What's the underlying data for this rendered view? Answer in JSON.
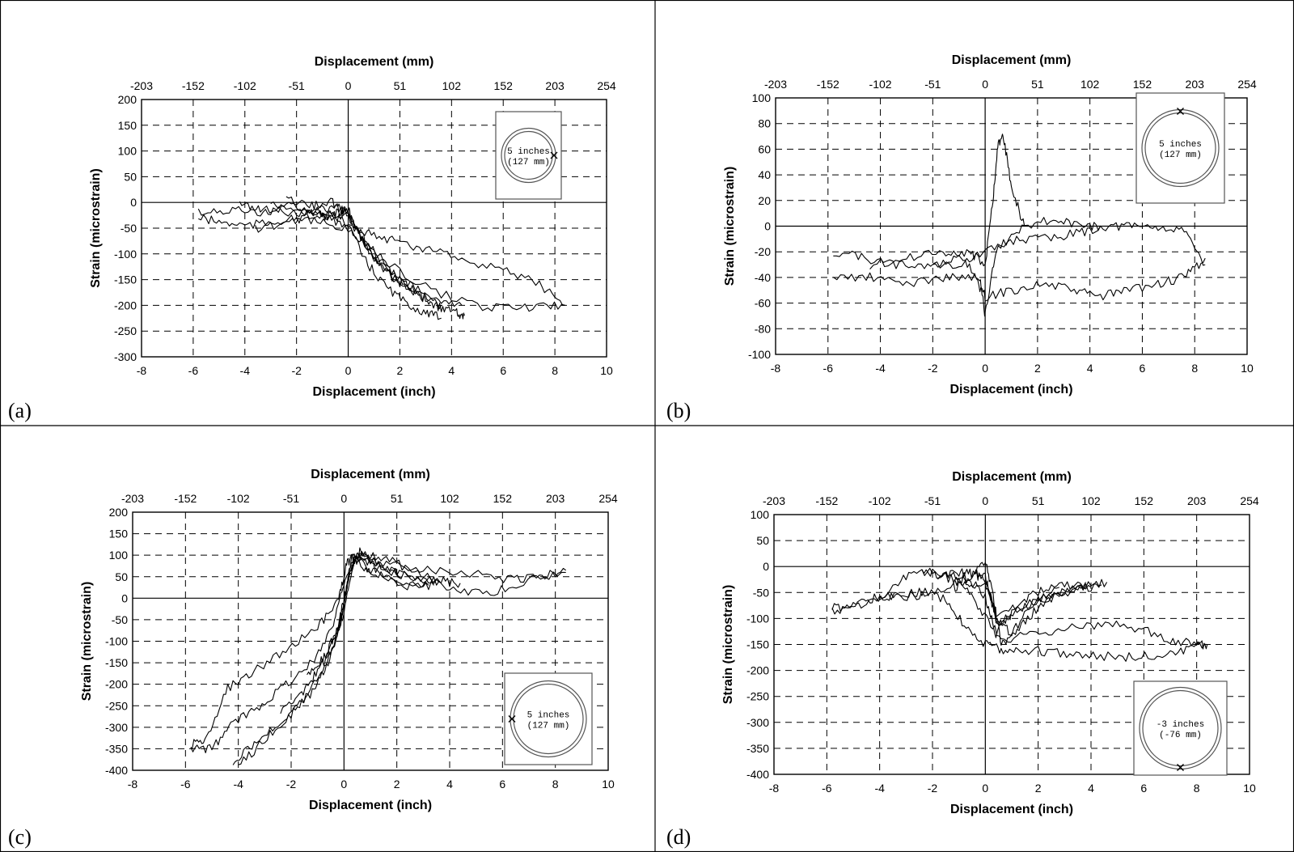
{
  "figure": {
    "panels": [
      {
        "label": "(a)",
        "title": "",
        "xlabel_top": "Displacement (mm)",
        "xlabel_bottom": "Displacement (inch)",
        "ylabel": "Strain (microstrain)",
        "inset": {
          "line1": "5 inches",
          "line2": "(127 mm)"
        }
      },
      {
        "label": "(b)",
        "title": "",
        "xlabel_top": "Displacement (mm)",
        "xlabel_bottom": "Displacement (inch)",
        "ylabel": "Strain (microstrain)",
        "inset": {
          "line1": "5 inches",
          "line2": "(127 mm)"
        }
      },
      {
        "label": "(c)",
        "title": "",
        "xlabel_top": "Displacement (mm)",
        "xlabel_bottom": "Displacement (inch)",
        "ylabel": "Strain (microstrain)",
        "inset": {
          "line1": "5 inches",
          "line2": "(127 mm)"
        }
      },
      {
        "label": "(d)",
        "title": "",
        "xlabel_top": "Displacement (mm)",
        "xlabel_bottom": "Displacement (inch)",
        "ylabel": "Strain (microstrain)",
        "inset": {
          "line1": "-3 inches",
          "line2": "(-76 mm)"
        }
      }
    ]
  },
  "chart_data": [
    {
      "type": "line",
      "panel": "(a)",
      "xlim": [
        -8,
        10
      ],
      "ylim": [
        -300,
        200
      ],
      "x_ticks": [
        -8,
        -6,
        -4,
        -2,
        0,
        2,
        4,
        6,
        8,
        10
      ],
      "y_ticks": [
        200,
        150,
        100,
        50,
        0,
        -50,
        -100,
        -150,
        -200,
        -250,
        -300
      ],
      "x2_ticks": [
        "-203",
        "-152",
        "-102",
        "-51",
        "0",
        "51",
        "102",
        "152",
        "203",
        "254"
      ],
      "grid": true,
      "line_color": "#000000",
      "series": [
        {
          "x": [
            -5.8,
            -4.6,
            -3.4,
            -2.4,
            -1.5,
            -0.8,
            -0.3,
            0.0,
            0.2,
            0.8,
            1.6,
            2.4,
            3.0,
            3.6,
            4.2,
            4.5
          ],
          "y": [
            -20,
            -15,
            -20,
            -15,
            -18,
            -25,
            -20,
            -10,
            -40,
            -100,
            -140,
            -170,
            -190,
            -205,
            -215,
            -220
          ]
        },
        {
          "x": [
            -5.8,
            -4.8,
            -3.8,
            -2.6,
            -1.6,
            -0.6,
            0.0,
            0.6,
            1.4,
            2.2,
            3.0,
            3.6
          ],
          "y": [
            -30,
            -40,
            -45,
            -35,
            -30,
            -25,
            -40,
            -110,
            -160,
            -195,
            -215,
            -225
          ]
        },
        {
          "x": [
            -4.2,
            -3.4,
            -2.2,
            -1.2,
            -0.4,
            0.0,
            0.6,
            1.4,
            2.4,
            3.4,
            4.4
          ],
          "y": [
            -5,
            -10,
            -20,
            -15,
            -10,
            -20,
            -80,
            -130,
            -160,
            -185,
            -200
          ]
        },
        {
          "x": [
            -3.0,
            -2.0,
            -1.0,
            0.0,
            0.8,
            1.8,
            2.8,
            3.6
          ],
          "y": [
            0,
            -10,
            -20,
            -30,
            -95,
            -150,
            -180,
            -200
          ]
        },
        {
          "x": [
            -2.4,
            -1.4,
            -0.6,
            0.0,
            0.6,
            1.2,
            2.0,
            2.8
          ],
          "y": [
            5,
            -5,
            0,
            -25,
            -70,
            -110,
            -150,
            -180
          ]
        },
        {
          "x": [
            -1.6,
            -0.8,
            0.0,
            0.8,
            1.8,
            3.0,
            4.4,
            6.0,
            7.4,
            8.4
          ],
          "y": [
            -20,
            -30,
            -45,
            -60,
            -75,
            -90,
            -110,
            -130,
            -160,
            -200
          ]
        },
        {
          "x": [
            -3.6,
            -2.4,
            -1.2,
            0.0,
            1.4,
            3.4,
            5.4,
            7.0,
            8.4
          ],
          "y": [
            -50,
            -40,
            -35,
            -55,
            -115,
            -175,
            -205,
            -205,
            -200
          ]
        }
      ]
    },
    {
      "type": "line",
      "panel": "(b)",
      "xlim": [
        -8,
        10
      ],
      "ylim": [
        -100,
        100
      ],
      "x_ticks": [
        -8,
        -6,
        -4,
        -2,
        0,
        2,
        4,
        6,
        8,
        10
      ],
      "y_ticks": [
        100,
        80,
        60,
        40,
        20,
        0,
        -20,
        -40,
        -60,
        -80,
        -100
      ],
      "x2_ticks": [
        "-203",
        "-152",
        "-102",
        "-51",
        "0",
        "51",
        "102",
        "152",
        "203",
        "254"
      ],
      "grid": true,
      "line_color": "#000000",
      "series": [
        {
          "x": [
            -5.8,
            -4.6,
            -3.4,
            -2.2,
            -1.0,
            0.0,
            1.2,
            2.4,
            3.6,
            4.6,
            5.6,
            6.6,
            7.6,
            8.4
          ],
          "y": [
            -20,
            -25,
            -30,
            -30,
            -30,
            -20,
            -10,
            -10,
            -5,
            0,
            0,
            0,
            -5,
            -30
          ]
        },
        {
          "x": [
            -5.8,
            -4.4,
            -3.0,
            -1.6,
            -0.4,
            0.0,
            1.0,
            2.2,
            3.4,
            4.4,
            5.4,
            6.6,
            7.6,
            8.4
          ],
          "y": [
            -40,
            -40,
            -45,
            -40,
            -40,
            -55,
            -50,
            -45,
            -50,
            -55,
            -50,
            -45,
            -40,
            -25
          ]
        },
        {
          "x": [
            -4.4,
            -3.0,
            -1.6,
            -0.6,
            0.0,
            0.3,
            0.5,
            0.7,
            1.0,
            1.5
          ],
          "y": [
            -30,
            -25,
            -20,
            -20,
            -30,
            20,
            65,
            70,
            30,
            0
          ]
        },
        {
          "x": [
            -2.0,
            -1.0,
            -0.2,
            0.0,
            0.4,
            1.4,
            2.6,
            3.6,
            4.4
          ],
          "y": [
            -30,
            -25,
            -40,
            -70,
            -20,
            0,
            5,
            0,
            0
          ]
        }
      ]
    },
    {
      "type": "line",
      "panel": "(c)",
      "xlim": [
        -8,
        10
      ],
      "ylim": [
        -400,
        200
      ],
      "x_ticks": [
        -8,
        -6,
        -4,
        -2,
        0,
        2,
        4,
        6,
        8,
        10
      ],
      "y_ticks": [
        200,
        150,
        100,
        50,
        0,
        -50,
        -100,
        -150,
        -200,
        -250,
        -300,
        -350,
        -400
      ],
      "x2_ticks": [
        "-203",
        "-152",
        "-102",
        "-51",
        "0",
        "51",
        "102",
        "152",
        "203",
        "254"
      ],
      "grid": true,
      "line_color": "#000000",
      "series": [
        {
          "x": [
            -5.8,
            -5.2,
            -4.4,
            -3.4,
            -2.2,
            -1.0,
            -0.2,
            0.1,
            0.4,
            1.2,
            2.4,
            3.6,
            4.4
          ],
          "y": [
            -340,
            -330,
            -210,
            -170,
            -120,
            -70,
            0,
            80,
            100,
            70,
            50,
            40,
            35
          ]
        },
        {
          "x": [
            -5.8,
            -5.0,
            -4.2,
            -3.2,
            -2.2,
            -1.2,
            -0.4,
            0.0,
            0.4,
            1.6,
            3.0,
            4.6,
            6.2,
            7.4,
            8.4
          ],
          "y": [
            -350,
            -350,
            -290,
            -250,
            -200,
            -150,
            -60,
            40,
            90,
            80,
            70,
            60,
            45,
            50,
            65
          ]
        },
        {
          "x": [
            -4.2,
            -3.4,
            -2.4,
            -1.6,
            -0.8,
            -0.2,
            0.2,
            0.6,
            1.6,
            2.6,
            3.6
          ],
          "y": [
            -380,
            -340,
            -290,
            -240,
            -170,
            -80,
            60,
            100,
            70,
            50,
            40
          ]
        },
        {
          "x": [
            -4.0,
            -3.0,
            -2.0,
            -1.2,
            -0.6,
            0.0,
            0.4,
            1.0,
            2.0,
            3.2
          ],
          "y": [
            -390,
            -330,
            -270,
            -220,
            -150,
            -30,
            90,
            60,
            40,
            30
          ]
        },
        {
          "x": [
            -2.4,
            -1.6,
            -1.0,
            -0.4,
            0.0,
            0.3,
            1.2,
            2.4,
            3.4
          ],
          "y": [
            -260,
            -220,
            -170,
            -110,
            -20,
            100,
            60,
            30,
            30
          ]
        },
        {
          "x": [
            -1.4,
            -0.8,
            -0.3,
            0.0,
            0.2,
            0.6,
            1.6,
            2.8,
            4.0,
            5.4,
            6.8,
            8.4
          ],
          "y": [
            -180,
            -140,
            -90,
            -20,
            60,
            110,
            90,
            60,
            20,
            10,
            40,
            60
          ]
        },
        {
          "x": [
            -0.6,
            -0.2,
            0.0,
            0.3,
            0.6,
            1.4,
            2.2
          ],
          "y": [
            -120,
            -60,
            0,
            80,
            100,
            80,
            50
          ]
        }
      ]
    },
    {
      "type": "line",
      "panel": "(d)",
      "xlim": [
        -8,
        10
      ],
      "ylim": [
        -400,
        100
      ],
      "x_ticks": [
        -8,
        -6,
        -4,
        -2,
        0,
        2,
        4,
        6,
        8,
        10
      ],
      "y_ticks": [
        100,
        50,
        0,
        -50,
        -100,
        -150,
        -200,
        -250,
        -300,
        -350,
        -400
      ],
      "x2_ticks": [
        "-203",
        "-152",
        "-102",
        "-51",
        "0",
        "51",
        "102",
        "152",
        "203",
        "254"
      ],
      "grid": true,
      "line_color": "#000000",
      "series": [
        {
          "x": [
            -5.8,
            -5.0,
            -4.2,
            -3.4,
            -2.4,
            -1.2,
            -0.6,
            0.0,
            0.4,
            1.2,
            2.4,
            3.6,
            4.6
          ],
          "y": [
            -80,
            -75,
            -60,
            -55,
            -50,
            -40,
            -30,
            -40,
            -90,
            -80,
            -60,
            -40,
            -30
          ]
        },
        {
          "x": [
            -5.8,
            -4.8,
            -3.8,
            -2.6,
            -1.6,
            -0.8,
            0.0,
            0.6,
            1.4,
            2.6,
            3.8,
            5.2,
            6.4,
            7.4,
            8.4
          ],
          "y": [
            -85,
            -75,
            -60,
            -55,
            -60,
            -110,
            -150,
            -160,
            -160,
            -165,
            -170,
            -175,
            -170,
            -165,
            -150
          ]
        },
        {
          "x": [
            -4.0,
            -3.0,
            -2.0,
            -1.0,
            -0.2,
            0.6,
            1.8,
            3.0,
            4.4,
            5.8,
            7.0,
            8.0,
            8.4
          ],
          "y": [
            -60,
            -20,
            -10,
            -30,
            -80,
            -140,
            -130,
            -120,
            -110,
            -120,
            -140,
            -150,
            -150
          ]
        },
        {
          "x": [
            -2.4,
            -1.6,
            -0.8,
            0.0,
            0.4,
            1.0,
            1.8,
            2.8,
            3.8
          ],
          "y": [
            -10,
            -15,
            -20,
            -60,
            -130,
            -90,
            -50,
            -40,
            -30
          ]
        },
        {
          "x": [
            -1.8,
            -1.0,
            -0.4,
            0.0,
            0.5,
            1.4,
            2.4,
            3.4,
            4.4
          ],
          "y": [
            -20,
            -10,
            -15,
            -30,
            -110,
            -80,
            -55,
            -45,
            -35
          ]
        },
        {
          "x": [
            -1.2,
            -0.6,
            0.0,
            0.3,
            0.6,
            1.2,
            2.0,
            3.0,
            4.0
          ],
          "y": [
            -30,
            -25,
            10,
            -60,
            -150,
            -120,
            -80,
            -50,
            -40
          ]
        },
        {
          "x": [
            -0.4,
            0.0,
            0.4,
            1.0,
            1.8,
            2.8
          ],
          "y": [
            -10,
            -20,
            -100,
            -130,
            -70,
            -40
          ]
        }
      ]
    }
  ]
}
